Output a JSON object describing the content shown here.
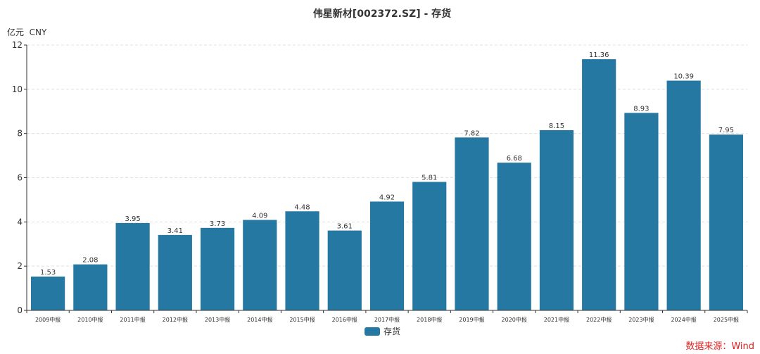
{
  "chart_data": {
    "type": "bar",
    "title": "伟星新材[002372.SZ] - 存货",
    "unit_label": "亿元  CNY",
    "categories": [
      "2009中报",
      "2010中报",
      "2011中报",
      "2012中报",
      "2013中报",
      "2014中报",
      "2015中报",
      "2016中报",
      "2017中报",
      "2018中报",
      "2019中报",
      "2020中报",
      "2021中报",
      "2022中报",
      "2023中报",
      "2024中报",
      "2025中报"
    ],
    "series": [
      {
        "name": "存货",
        "values": [
          1.53,
          2.08,
          3.95,
          3.41,
          3.73,
          4.09,
          4.48,
          3.61,
          4.92,
          5.81,
          7.82,
          6.68,
          8.15,
          11.36,
          8.93,
          10.39,
          7.95
        ]
      }
    ],
    "ylim": [
      0,
      12
    ],
    "yticks": [
      0,
      2,
      4,
      6,
      8,
      10,
      12
    ],
    "grid": true,
    "legend_position": "bottom-center",
    "bar_color": "#2478a2",
    "source_text": "数据来源：Wind",
    "source_color": "#e02020"
  }
}
